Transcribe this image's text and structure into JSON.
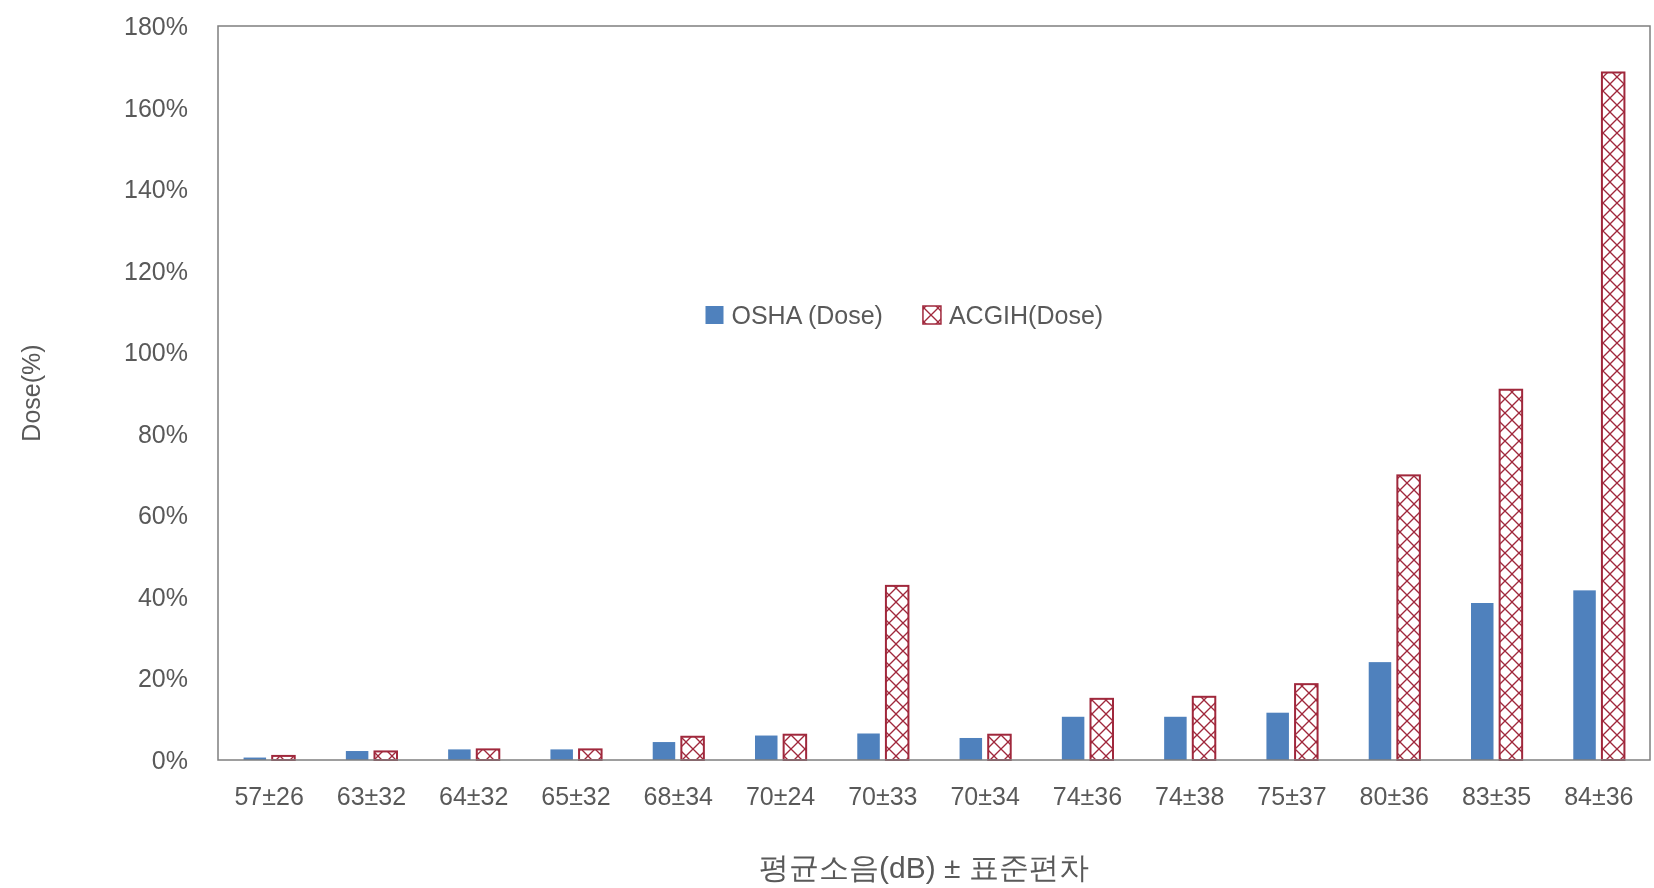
{
  "chart_data": {
    "type": "bar",
    "xlabel": "평균소음(dB) ± 표준편차",
    "ylabel": "Dose(%)",
    "categories": [
      "57±26",
      "63±32",
      "64±32",
      "65±32",
      "68±34",
      "70±24",
      "70±33",
      "70±34",
      "74±36",
      "74±38",
      "75±37",
      "80±36",
      "83±35",
      "84±36"
    ],
    "series": [
      {
        "name": "OSHA (Dose)",
        "color": "#4f81bd",
        "values": [
          0.6,
          2.2,
          2.6,
          2.6,
          4.4,
          6.0,
          6.5,
          5.4,
          10.6,
          10.6,
          11.6,
          24.0,
          38.5,
          41.6
        ]
      },
      {
        "name": "ACGIH(Dose)",
        "color": "#a0283c",
        "values": [
          1.0,
          2.1,
          2.6,
          2.6,
          5.7,
          6.2,
          42.7,
          6.2,
          15.0,
          15.5,
          18.6,
          69.8,
          90.8,
          168.6
        ]
      }
    ],
    "ylim": [
      0,
      180
    ],
    "yticks": [
      {
        "value": 0,
        "label": "0%"
      },
      {
        "value": 20,
        "label": "20%"
      },
      {
        "value": 40,
        "label": "40%"
      },
      {
        "value": 60,
        "label": "60%"
      },
      {
        "value": 80,
        "label": "80%"
      },
      {
        "value": 100,
        "label": "100%"
      },
      {
        "value": 120,
        "label": "120%"
      },
      {
        "value": 140,
        "label": "140%"
      },
      {
        "value": 160,
        "label": "160%"
      },
      {
        "value": 180,
        "label": "180%"
      }
    ],
    "grid": false,
    "legend": "top"
  }
}
